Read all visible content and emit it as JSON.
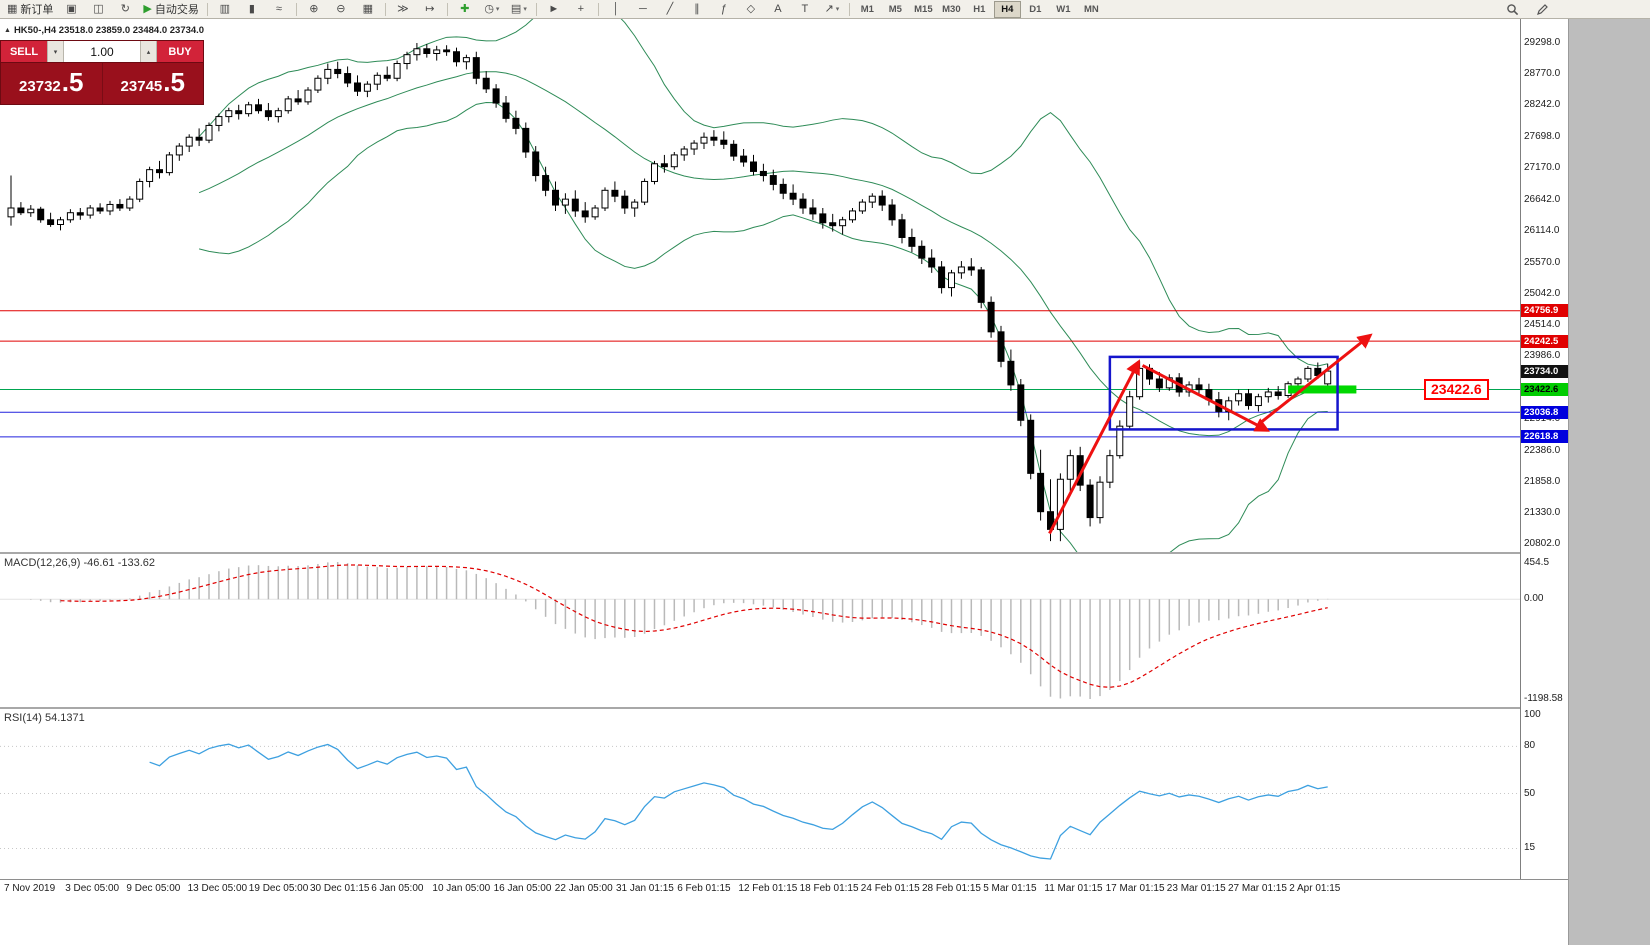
{
  "toolbar": {
    "groups": [
      [
        {
          "name": "new-order-button",
          "glyph": "▦",
          "label": "新订单"
        },
        {
          "name": "charts-grid-icon",
          "glyph": "▣"
        },
        {
          "name": "profiles-icon",
          "glyph": "◫"
        },
        {
          "name": "refresh-icon",
          "glyph": "↻"
        },
        {
          "name": "autotrading-button",
          "glyph": "▶",
          "label": "自动交易",
          "glyph_color": "#2e9e2e"
        }
      ],
      [
        {
          "name": "bar-chart-icon",
          "glyph": "▥"
        },
        {
          "name": "candlestick-chart-icon",
          "glyph": "▮"
        },
        {
          "name": "line-chart-icon",
          "glyph": "≈"
        }
      ],
      [
        {
          "name": "zoom-in-icon",
          "glyph": "⊕"
        },
        {
          "name": "zoom-out-icon",
          "glyph": "⊖"
        },
        {
          "name": "tile-windows-icon",
          "glyph": "▦"
        }
      ],
      [
        {
          "name": "auto-scroll-icon",
          "glyph": "≫"
        },
        {
          "name": "chart-shift-icon",
          "glyph": "↦"
        }
      ],
      [
        {
          "name": "indicators-button",
          "glyph": "✚",
          "glyph_color": "#2e9e2e"
        },
        {
          "name": "periods-dropdown",
          "glyph": "◷",
          "dropdown": true
        },
        {
          "name": "templates-dropdown",
          "glyph": "▤",
          "dropdown": true
        }
      ],
      [
        {
          "name": "cursor-icon",
          "glyph": "►"
        },
        {
          "name": "crosshair-icon",
          "glyph": "+"
        }
      ],
      [
        {
          "name": "vertical-line-icon",
          "glyph": "│"
        },
        {
          "name": "horizontal-line-icon",
          "glyph": "─"
        },
        {
          "name": "trendline-icon",
          "glyph": "╱"
        },
        {
          "name": "channel-icon",
          "glyph": "∥"
        },
        {
          "name": "fibonacci-icon",
          "glyph": "ƒ"
        },
        {
          "name": "shapes-icon",
          "glyph": "◇"
        },
        {
          "name": "text-icon",
          "glyph": "A"
        },
        {
          "name": "label-icon",
          "glyph": "T"
        },
        {
          "name": "arrows-icon",
          "glyph": "↗",
          "dropdown": true
        }
      ]
    ],
    "timeframes": [
      "M1",
      "M5",
      "M15",
      "M30",
      "H1",
      "H4",
      "D1",
      "W1",
      "MN"
    ],
    "active_timeframe": "H4",
    "right_icons": [
      {
        "name": "search-icon"
      },
      {
        "name": "edit-icon"
      }
    ]
  },
  "trade_panel": {
    "sell_label": "SELL",
    "buy_label": "BUY",
    "volume": "1.00",
    "volume_down_glyph": "▾",
    "volume_up_glyph": "▴",
    "sell_price_main": "23732",
    "sell_price_frac": ".5",
    "buy_price_main": "23745",
    "buy_price_frac": ".5"
  },
  "chart": {
    "symbol_title": "HK50-,H4 23518.0 23859.0 23484.0 23734.0",
    "callout_label": "23422.6"
  },
  "chart_data": {
    "type": "candlestick",
    "symbol": "HK50-",
    "timeframe": "H4",
    "ohlc_display": {
      "open": "23518.0",
      "high": "23859.0",
      "low": "23484.0",
      "close": "23734.0"
    },
    "price_max": 29298,
    "price_min": 20802,
    "axis_labels": [
      "29298.0",
      "28770.0",
      "28242.0",
      "27698.0",
      "27170.0",
      "26642.0",
      "26114.0",
      "25570.0",
      "25042.0",
      "24514.0",
      "23986.0",
      "22914.0",
      "22386.0",
      "21858.0",
      "21330.0",
      "20802.0"
    ],
    "price_tags": [
      {
        "label": "24756.9",
        "price": 24756.9,
        "bg": "#e00000",
        "fg": "#ffffff"
      },
      {
        "label": "24242.5",
        "price": 24242.5,
        "bg": "#e00000",
        "fg": "#ffffff"
      },
      {
        "label": "23734.0",
        "price": 23734.0,
        "bg": "#111111",
        "fg": "#ffffff"
      },
      {
        "label": "23422.6",
        "price": 23422.6,
        "bg": "#00cc00",
        "fg": "#000000"
      },
      {
        "label": "23036.8",
        "price": 23036.8,
        "bg": "#0000dd",
        "fg": "#ffffff"
      },
      {
        "label": "22618.8",
        "price": 22618.8,
        "bg": "#0000dd",
        "fg": "#ffffff"
      }
    ],
    "levels": [
      {
        "price": 24756.9,
        "color": "#e00000"
      },
      {
        "price": 24242.5,
        "color": "#e00000"
      },
      {
        "price": 23422.6,
        "color": "#00a550"
      },
      {
        "price": 23036.8,
        "color": "#2222dd"
      },
      {
        "price": 22618.8,
        "color": "#2222dd"
      }
    ],
    "bollinger": {
      "period": 20,
      "deviation": 2
    },
    "colors": {
      "bull": "#ffffff",
      "bear": "#000000",
      "wick": "#000000",
      "bollinger": "#2e8b57",
      "macd_histogram": "#b9b9b9",
      "macd_signal": "#e00000",
      "rsi_line": "#3da0e0",
      "arrow": "#ee1111",
      "box": "#1515cc",
      "highlight": "#00d800"
    },
    "candles": [
      [
        26350,
        27050,
        26200,
        26500
      ],
      [
        26500,
        26600,
        26380,
        26420
      ],
      [
        26420,
        26550,
        26350,
        26480
      ],
      [
        26480,
        26520,
        26250,
        26300
      ],
      [
        26300,
        26420,
        26180,
        26220
      ],
      [
        26220,
        26350,
        26120,
        26300
      ],
      [
        26300,
        26480,
        26250,
        26420
      ],
      [
        26420,
        26500,
        26300,
        26380
      ],
      [
        26380,
        26550,
        26320,
        26500
      ],
      [
        26500,
        26580,
        26400,
        26450
      ],
      [
        26450,
        26620,
        26380,
        26560
      ],
      [
        26560,
        26650,
        26450,
        26500
      ],
      [
        26500,
        26700,
        26450,
        26650
      ],
      [
        26650,
        27000,
        26600,
        26950
      ],
      [
        26950,
        27200,
        26850,
        27150
      ],
      [
        27150,
        27300,
        27000,
        27100
      ],
      [
        27100,
        27450,
        27050,
        27400
      ],
      [
        27400,
        27600,
        27300,
        27550
      ],
      [
        27550,
        27750,
        27450,
        27700
      ],
      [
        27700,
        27850,
        27550,
        27650
      ],
      [
        27650,
        27950,
        27600,
        27900
      ],
      [
        27900,
        28100,
        27800,
        28050
      ],
      [
        28050,
        28200,
        27950,
        28150
      ],
      [
        28150,
        28250,
        28000,
        28100
      ],
      [
        28100,
        28300,
        28050,
        28250
      ],
      [
        28250,
        28350,
        28100,
        28150
      ],
      [
        28150,
        28280,
        27980,
        28050
      ],
      [
        28050,
        28200,
        27950,
        28150
      ],
      [
        28150,
        28400,
        28100,
        28350
      ],
      [
        28350,
        28500,
        28250,
        28300
      ],
      [
        28300,
        28550,
        28250,
        28500
      ],
      [
        28500,
        28750,
        28450,
        28700
      ],
      [
        28700,
        28950,
        28600,
        28850
      ],
      [
        28850,
        28980,
        28700,
        28780
      ],
      [
        28780,
        28900,
        28550,
        28620
      ],
      [
        28620,
        28750,
        28400,
        28480
      ],
      [
        28480,
        28650,
        28380,
        28600
      ],
      [
        28600,
        28800,
        28500,
        28750
      ],
      [
        28750,
        28900,
        28650,
        28700
      ],
      [
        28700,
        29000,
        28650,
        28950
      ],
      [
        28950,
        29150,
        28850,
        29100
      ],
      [
        29100,
        29298,
        29000,
        29200
      ],
      [
        29200,
        29280,
        29050,
        29120
      ],
      [
        29120,
        29250,
        29000,
        29180
      ],
      [
        29180,
        29260,
        29080,
        29150
      ],
      [
        29150,
        29220,
        28900,
        28980
      ],
      [
        28980,
        29100,
        28850,
        29050
      ],
      [
        29050,
        29150,
        28600,
        28700
      ],
      [
        28700,
        28820,
        28450,
        28520
      ],
      [
        28520,
        28600,
        28200,
        28280
      ],
      [
        28280,
        28400,
        27950,
        28020
      ],
      [
        28020,
        28150,
        27750,
        27850
      ],
      [
        27850,
        27950,
        27350,
        27450
      ],
      [
        27450,
        27550,
        26950,
        27050
      ],
      [
        27050,
        27200,
        26700,
        26800
      ],
      [
        26800,
        26950,
        26450,
        26550
      ],
      [
        26550,
        26750,
        26400,
        26650
      ],
      [
        26650,
        26800,
        26350,
        26450
      ],
      [
        26450,
        26600,
        26250,
        26350
      ],
      [
        26350,
        26550,
        26300,
        26500
      ],
      [
        26500,
        26850,
        26450,
        26800
      ],
      [
        26800,
        26950,
        26600,
        26700
      ],
      [
        26700,
        26800,
        26400,
        26500
      ],
      [
        26500,
        26650,
        26350,
        26600
      ],
      [
        26600,
        27000,
        26550,
        26950
      ],
      [
        26950,
        27300,
        26900,
        27250
      ],
      [
        27250,
        27400,
        27100,
        27200
      ],
      [
        27200,
        27450,
        27150,
        27400
      ],
      [
        27400,
        27550,
        27300,
        27500
      ],
      [
        27500,
        27650,
        27400,
        27600
      ],
      [
        27600,
        27780,
        27500,
        27700
      ],
      [
        27700,
        27820,
        27550,
        27650
      ],
      [
        27650,
        27800,
        27500,
        27580
      ],
      [
        27580,
        27650,
        27300,
        27380
      ],
      [
        27380,
        27500,
        27200,
        27280
      ],
      [
        27280,
        27400,
        27050,
        27120
      ],
      [
        27120,
        27250,
        26950,
        27050
      ],
      [
        27050,
        27150,
        26800,
        26900
      ],
      [
        26900,
        27000,
        26650,
        26750
      ],
      [
        26750,
        26900,
        26550,
        26650
      ],
      [
        26650,
        26750,
        26400,
        26500
      ],
      [
        26500,
        26650,
        26300,
        26400
      ],
      [
        26400,
        26500,
        26150,
        26250
      ],
      [
        26250,
        26400,
        26100,
        26200
      ],
      [
        26200,
        26350,
        26050,
        26300
      ],
      [
        26300,
        26500,
        26250,
        26450
      ],
      [
        26450,
        26650,
        26400,
        26600
      ],
      [
        26600,
        26750,
        26500,
        26700
      ],
      [
        26700,
        26800,
        26450,
        26550
      ],
      [
        26550,
        26650,
        26200,
        26300
      ],
      [
        26300,
        26400,
        25900,
        26000
      ],
      [
        26000,
        26150,
        25750,
        25850
      ],
      [
        25850,
        25950,
        25550,
        25650
      ],
      [
        25650,
        25800,
        25400,
        25500
      ],
      [
        25500,
        25600,
        25050,
        25150
      ],
      [
        25150,
        25450,
        25000,
        25400
      ],
      [
        25400,
        25600,
        25300,
        25500
      ],
      [
        25500,
        25650,
        25350,
        25450
      ],
      [
        25450,
        25500,
        24800,
        24900
      ],
      [
        24900,
        25000,
        24300,
        24400
      ],
      [
        24400,
        24500,
        23800,
        23900
      ],
      [
        23900,
        24100,
        23400,
        23500
      ],
      [
        23500,
        23600,
        22800,
        22900
      ],
      [
        22900,
        23000,
        21900,
        22000
      ],
      [
        22000,
        22400,
        21200,
        21350
      ],
      [
        21350,
        21900,
        20850,
        21050
      ],
      [
        21050,
        22000,
        20850,
        21900
      ],
      [
        21900,
        22400,
        21700,
        22300
      ],
      [
        22300,
        22450,
        21700,
        21800
      ],
      [
        21800,
        21900,
        21100,
        21250
      ],
      [
        21250,
        21950,
        21150,
        21850
      ],
      [
        21850,
        22400,
        21750,
        22300
      ],
      [
        22300,
        22900,
        22250,
        22800
      ],
      [
        22800,
        23400,
        22750,
        23300
      ],
      [
        23300,
        23900,
        23250,
        23780
      ],
      [
        23780,
        23850,
        23500,
        23600
      ],
      [
        23600,
        23720,
        23380,
        23450
      ],
      [
        23450,
        23680,
        23400,
        23620
      ],
      [
        23620,
        23700,
        23300,
        23380
      ],
      [
        23380,
        23560,
        23300,
        23500
      ],
      [
        23500,
        23620,
        23350,
        23420
      ],
      [
        23420,
        23520,
        23150,
        23250
      ],
      [
        23250,
        23380,
        22950,
        23050
      ],
      [
        23050,
        23300,
        22900,
        23230
      ],
      [
        23230,
        23420,
        23150,
        23350
      ],
      [
        23350,
        23430,
        23080,
        23150
      ],
      [
        23150,
        23350,
        23050,
        23300
      ],
      [
        23300,
        23450,
        23200,
        23380
      ],
      [
        23380,
        23480,
        23250,
        23320
      ],
      [
        23320,
        23560,
        23280,
        23520
      ],
      [
        23520,
        23640,
        23420,
        23600
      ],
      [
        23600,
        23820,
        23550,
        23780
      ],
      [
        23780,
        23880,
        23600,
        23660
      ],
      [
        23518,
        23859,
        23484,
        23734
      ]
    ],
    "annotations": {
      "box": {
        "i1": 111.3,
        "i2": 134.3,
        "p1": 23975,
        "p2": 22745
      },
      "arrows": [
        {
          "i1": 105.2,
          "p1": 20980,
          "i2": 114.2,
          "p2": 23890
        },
        {
          "i1": 114.6,
          "p1": 23830,
          "i2": 127.2,
          "p2": 22730
        },
        {
          "i1": 126.6,
          "p1": 22870,
          "i2": 137.6,
          "p2": 24340
        }
      ],
      "highlight": {
        "i1": 129.3,
        "i2": 136.2,
        "price": 23422.6
      }
    },
    "macd": {
      "label": "MACD(12,26,9) -46.61 -133.62",
      "params": [
        12,
        26,
        9
      ],
      "axis_labels": [
        "454.5",
        "0.00",
        "-1198.58"
      ]
    },
    "rsi": {
      "label": "RSI(14) 54.1371",
      "period": 14,
      "axis_labels": [
        "100",
        "80",
        "50",
        "15"
      ],
      "levels": [
        80,
        50,
        15
      ]
    },
    "time_labels": [
      "7 Nov 2019",
      "3 Dec 05:00",
      "9 Dec 05:00",
      "13 Dec 05:00",
      "19 Dec 05:00",
      "30 Dec 01:15",
      "6 Jan 05:00",
      "10 Jan 05:00",
      "16 Jan 05:00",
      "22 Jan 05:00",
      "31 Jan 01:15",
      "6 Feb 01:15",
      "12 Feb 01:15",
      "18 Feb 01:15",
      "24 Feb 01:15",
      "28 Feb 01:15",
      "5 Mar 01:15",
      "11 Mar 01:15",
      "17 Mar 01:15",
      "23 Mar 01:15",
      "27 Mar 01:15",
      "2 Apr 01:15"
    ]
  }
}
